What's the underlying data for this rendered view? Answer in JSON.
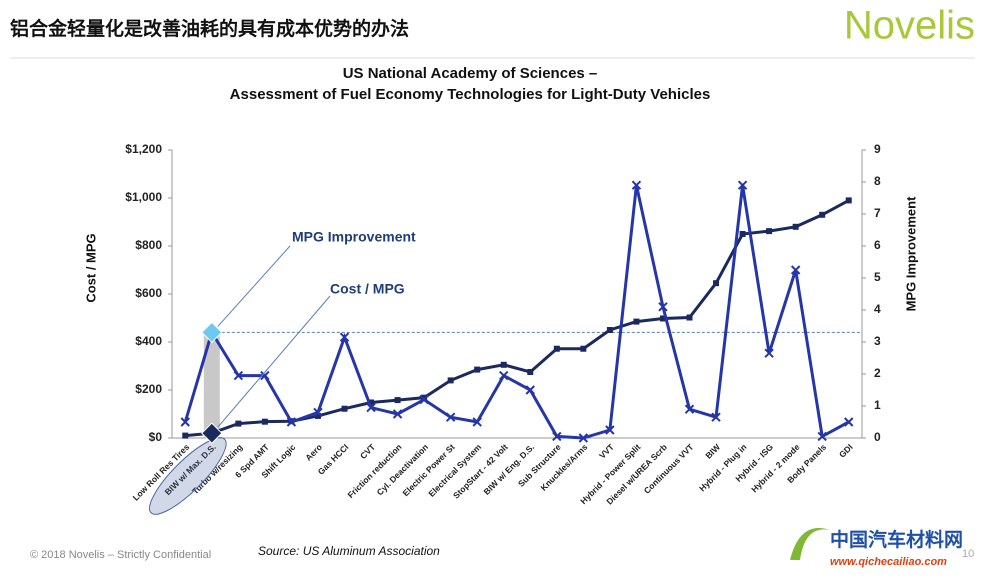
{
  "header": {
    "title": "铝合金轻量化是改善油耗的具有成本优势的办法",
    "logo": "Novelis"
  },
  "chart_data": {
    "type": "line",
    "title": "US National Academy of Sciences –",
    "subtitle": "Assessment of Fuel Economy Technologies for Light-Duty Vehicles",
    "y_label": "Cost / MPG",
    "y2_label": "MPG Improvement",
    "categories": [
      "Low Roll Res Tires",
      "BIW w/ Max. D.S.",
      "Turbo w/resizing",
      "6 Spd AMT",
      "Shift Logic",
      "Aero",
      "Gas HCCI",
      "CVT",
      "Friction reduction",
      "Cyl. Deactivation",
      "Electric Power St",
      "Electrical System",
      "StopStart - 42 Volt",
      "BIW w/ Eng. D.S.",
      "Sub Structure",
      "Knuckles/Arms",
      "VVT",
      "Hybrid - Power Split",
      "Diesel w/UREA Scrb",
      "Continuous VVT",
      "BIW",
      "Hybrid - Plug in",
      "Hybrid - ISG",
      "Hybrid - 2 mode",
      "Body Panels",
      "GDI"
    ],
    "series": [
      {
        "name": "Cost / MPG",
        "color": "#1b2a5e",
        "marker": "square",
        "axis": "y",
        "values": [
          10,
          20,
          60,
          68,
          70,
          92,
          122,
          148,
          158,
          168,
          240,
          285,
          305,
          275,
          372,
          372,
          450,
          485,
          498,
          502,
          645,
          850,
          862,
          880,
          930,
          990
        ]
      },
      {
        "name": "MPG Improvement",
        "color": "#2536a8",
        "marker": "x",
        "axis": "y2",
        "values": [
          0.5,
          3.3,
          1.95,
          1.95,
          0.5,
          0.8,
          3.15,
          0.95,
          0.75,
          1.2,
          0.65,
          0.5,
          1.95,
          1.5,
          0.05,
          0,
          0.25,
          7.9,
          4.1,
          0.9,
          0.65,
          7.9,
          2.65,
          5.25,
          0.05,
          0.5
        ]
      }
    ],
    "ylim": [
      0,
      1200
    ],
    "yticks": [
      {
        "value": 0,
        "label": "$0"
      },
      {
        "value": 200,
        "label": "$200"
      },
      {
        "value": 400,
        "label": "$400"
      },
      {
        "value": 600,
        "label": "$600"
      },
      {
        "value": 800,
        "label": "$800"
      },
      {
        "value": 1000,
        "label": "$1,000"
      },
      {
        "value": 1200,
        "label": "$1,200"
      }
    ],
    "y2lim": [
      0,
      9
    ],
    "y2ticks": [
      0,
      1,
      2,
      3,
      4,
      5,
      6,
      7,
      8,
      9
    ],
    "reference_line_y2": 3.3,
    "highlight_index": 1,
    "source": "Source: US Aluminum Association"
  },
  "footer": {
    "copyright": "© 2018 Novelis – Strictly Confidential",
    "page": "10",
    "watermark_cn": "中国汽车材料网",
    "watermark_url": "www.qichecailiao.com"
  }
}
